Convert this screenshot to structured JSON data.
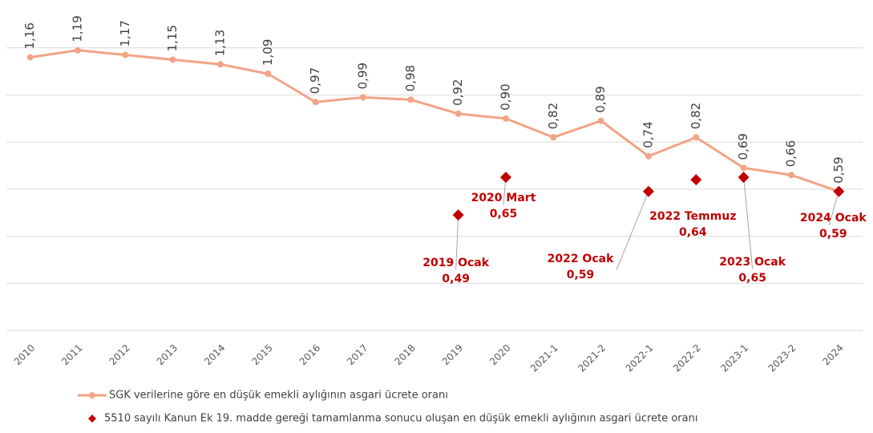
{
  "chart_data": {
    "type": "line",
    "categories": [
      "2010",
      "2011",
      "2012",
      "2013",
      "2014",
      "2015",
      "2016",
      "2017",
      "2018",
      "2019",
      "2020",
      "2021-1",
      "2021-2",
      "2022-1",
      "2022-2",
      "2023-1",
      "2023-2",
      "2024"
    ],
    "series": [
      {
        "name": "SGK verilerine göre en düşük emekli aylığının asgari ücrete oranı",
        "color": "#f2a486",
        "values": [
          1.16,
          1.19,
          1.17,
          1.15,
          1.13,
          1.09,
          0.97,
          0.99,
          0.98,
          0.92,
          0.9,
          0.82,
          0.89,
          0.74,
          0.82,
          0.69,
          0.66,
          0.59
        ],
        "value_labels": [
          "1,16",
          "1,19",
          "1,17",
          "1,15",
          "1,13",
          "1,09",
          "0,97",
          "0,99",
          "0,98",
          "0,92",
          "0,90",
          "0,82",
          "0,89",
          "0,74",
          "0,82",
          "0,69",
          "0,66",
          "0,59"
        ]
      },
      {
        "name": "5510 sayılı Kanun Ek 19. madde gereği tamamlanma sonucu oluşan en düşük emekli aylığının asgari ücrete oranı",
        "color": "#c00000",
        "marker": "diamond",
        "values": [
          null,
          null,
          null,
          null,
          null,
          null,
          null,
          null,
          null,
          0.49,
          0.65,
          null,
          null,
          0.59,
          0.64,
          0.65,
          null,
          0.59
        ],
        "value_labels": [
          null,
          null,
          null,
          null,
          null,
          null,
          null,
          null,
          null,
          "0,49",
          "0,65",
          null,
          null,
          "0,59",
          "0,64",
          "0,65",
          null,
          "0,59"
        ],
        "point_labels": [
          null,
          null,
          null,
          null,
          null,
          null,
          null,
          null,
          null,
          "2019 Ocak",
          "2020 Mart",
          null,
          null,
          "2022 Ocak",
          "2022 Temmuz",
          "2023 Ocak",
          null,
          "2024 Ocak"
        ]
      }
    ],
    "ylim": [
      0,
      1.4
    ],
    "yticks": [
      0,
      0.2,
      0.4,
      0.6,
      0.8,
      1,
      1.2
    ],
    "grid": true
  }
}
